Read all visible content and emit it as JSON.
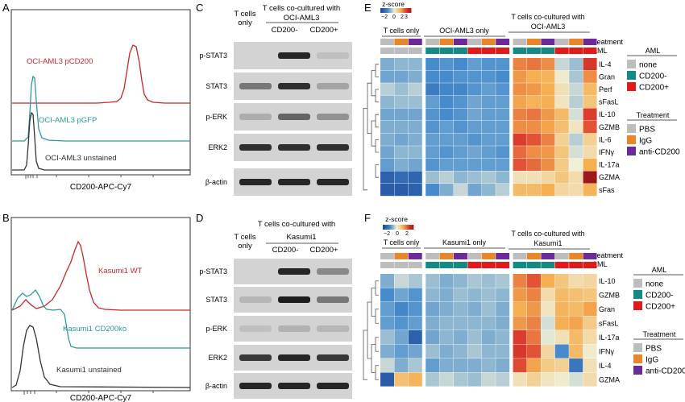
{
  "panels": {
    "A": {
      "letter": "A",
      "xlabel": "CD200-APC-Cy7",
      "labels": [
        "OCI-AML3 pCD200",
        "OCI-AML3 pGFP",
        "OCI-AML3 unstained"
      ],
      "colors": [
        "#c8282a",
        "#2a9a98",
        "#333333"
      ]
    },
    "B": {
      "letter": "B",
      "xlabel": "CD200-APC-Cy7",
      "labels": [
        "Kasumi1 WT",
        "Kasumi1 CD200ko",
        "Kasumi1 unstained"
      ],
      "colors": [
        "#c8282a",
        "#2a9a98",
        "#333333"
      ]
    },
    "C": {
      "letter": "C",
      "header_group": "T cells co-cultured with",
      "header_line": "OCI-AML3",
      "lane1": "T cells",
      "lane1b": "only",
      "lane2": "CD200-",
      "lane3": "CD200+",
      "rows": [
        "p-STAT3",
        "STAT3",
        "p-ERK",
        "ERK2",
        "β-actin"
      ]
    },
    "D": {
      "letter": "D",
      "header_group": "T cells co-cultured with",
      "header_line": "Kasumi1",
      "lane1": "T cells",
      "lane1b": "only",
      "lane2": "CD200-",
      "lane3": "CD200+",
      "rows": [
        "p-STAT3",
        "STAT3",
        "p-ERK",
        "ERK2",
        "β-actin"
      ]
    },
    "E": {
      "letter": "E",
      "zscore_title": "z-score",
      "zscore_ticks": [
        "−2",
        "0",
        "2",
        "3"
      ],
      "group_labels": [
        "T cells only",
        "OCI-AML3 only",
        "T cells co-cultured with",
        "OCI-AML3"
      ],
      "track_labels": [
        "treatment",
        "AML"
      ],
      "genes": [
        "IL-4",
        "Gran",
        "Perf",
        "sFasL",
        "IL-10",
        "GZMB",
        "IL-6",
        "IFNγ",
        "IL-17a",
        "GZMA",
        "sFas"
      ]
    },
    "F": {
      "letter": "F",
      "zscore_title": "z-score",
      "zscore_ticks": [
        "−2",
        "0",
        "2"
      ],
      "group_labels": [
        "T cells only",
        "Kasumi1 only",
        "T cells co-cultured with",
        "Kasumi1"
      ],
      "track_labels": [
        "treatment",
        "AML"
      ],
      "genes": [
        "IL-10",
        "GZMB",
        "Gran",
        "sFasL",
        "IL-17a",
        "IFNγ",
        "IL-4",
        "GZMA"
      ]
    }
  },
  "legend": {
    "aml_title": "AML",
    "aml_items": [
      "none",
      "CD200-",
      "CD200+"
    ],
    "aml_colors": [
      "#bdbdbd",
      "#148a84",
      "#e31a1c"
    ],
    "treatment_title": "Treatment",
    "treatment_items": [
      "PBS",
      "IgG",
      "anti-CD200"
    ],
    "treatment_colors": [
      "#bdbdbd",
      "#e8862a",
      "#6a2a9a"
    ]
  }
}
